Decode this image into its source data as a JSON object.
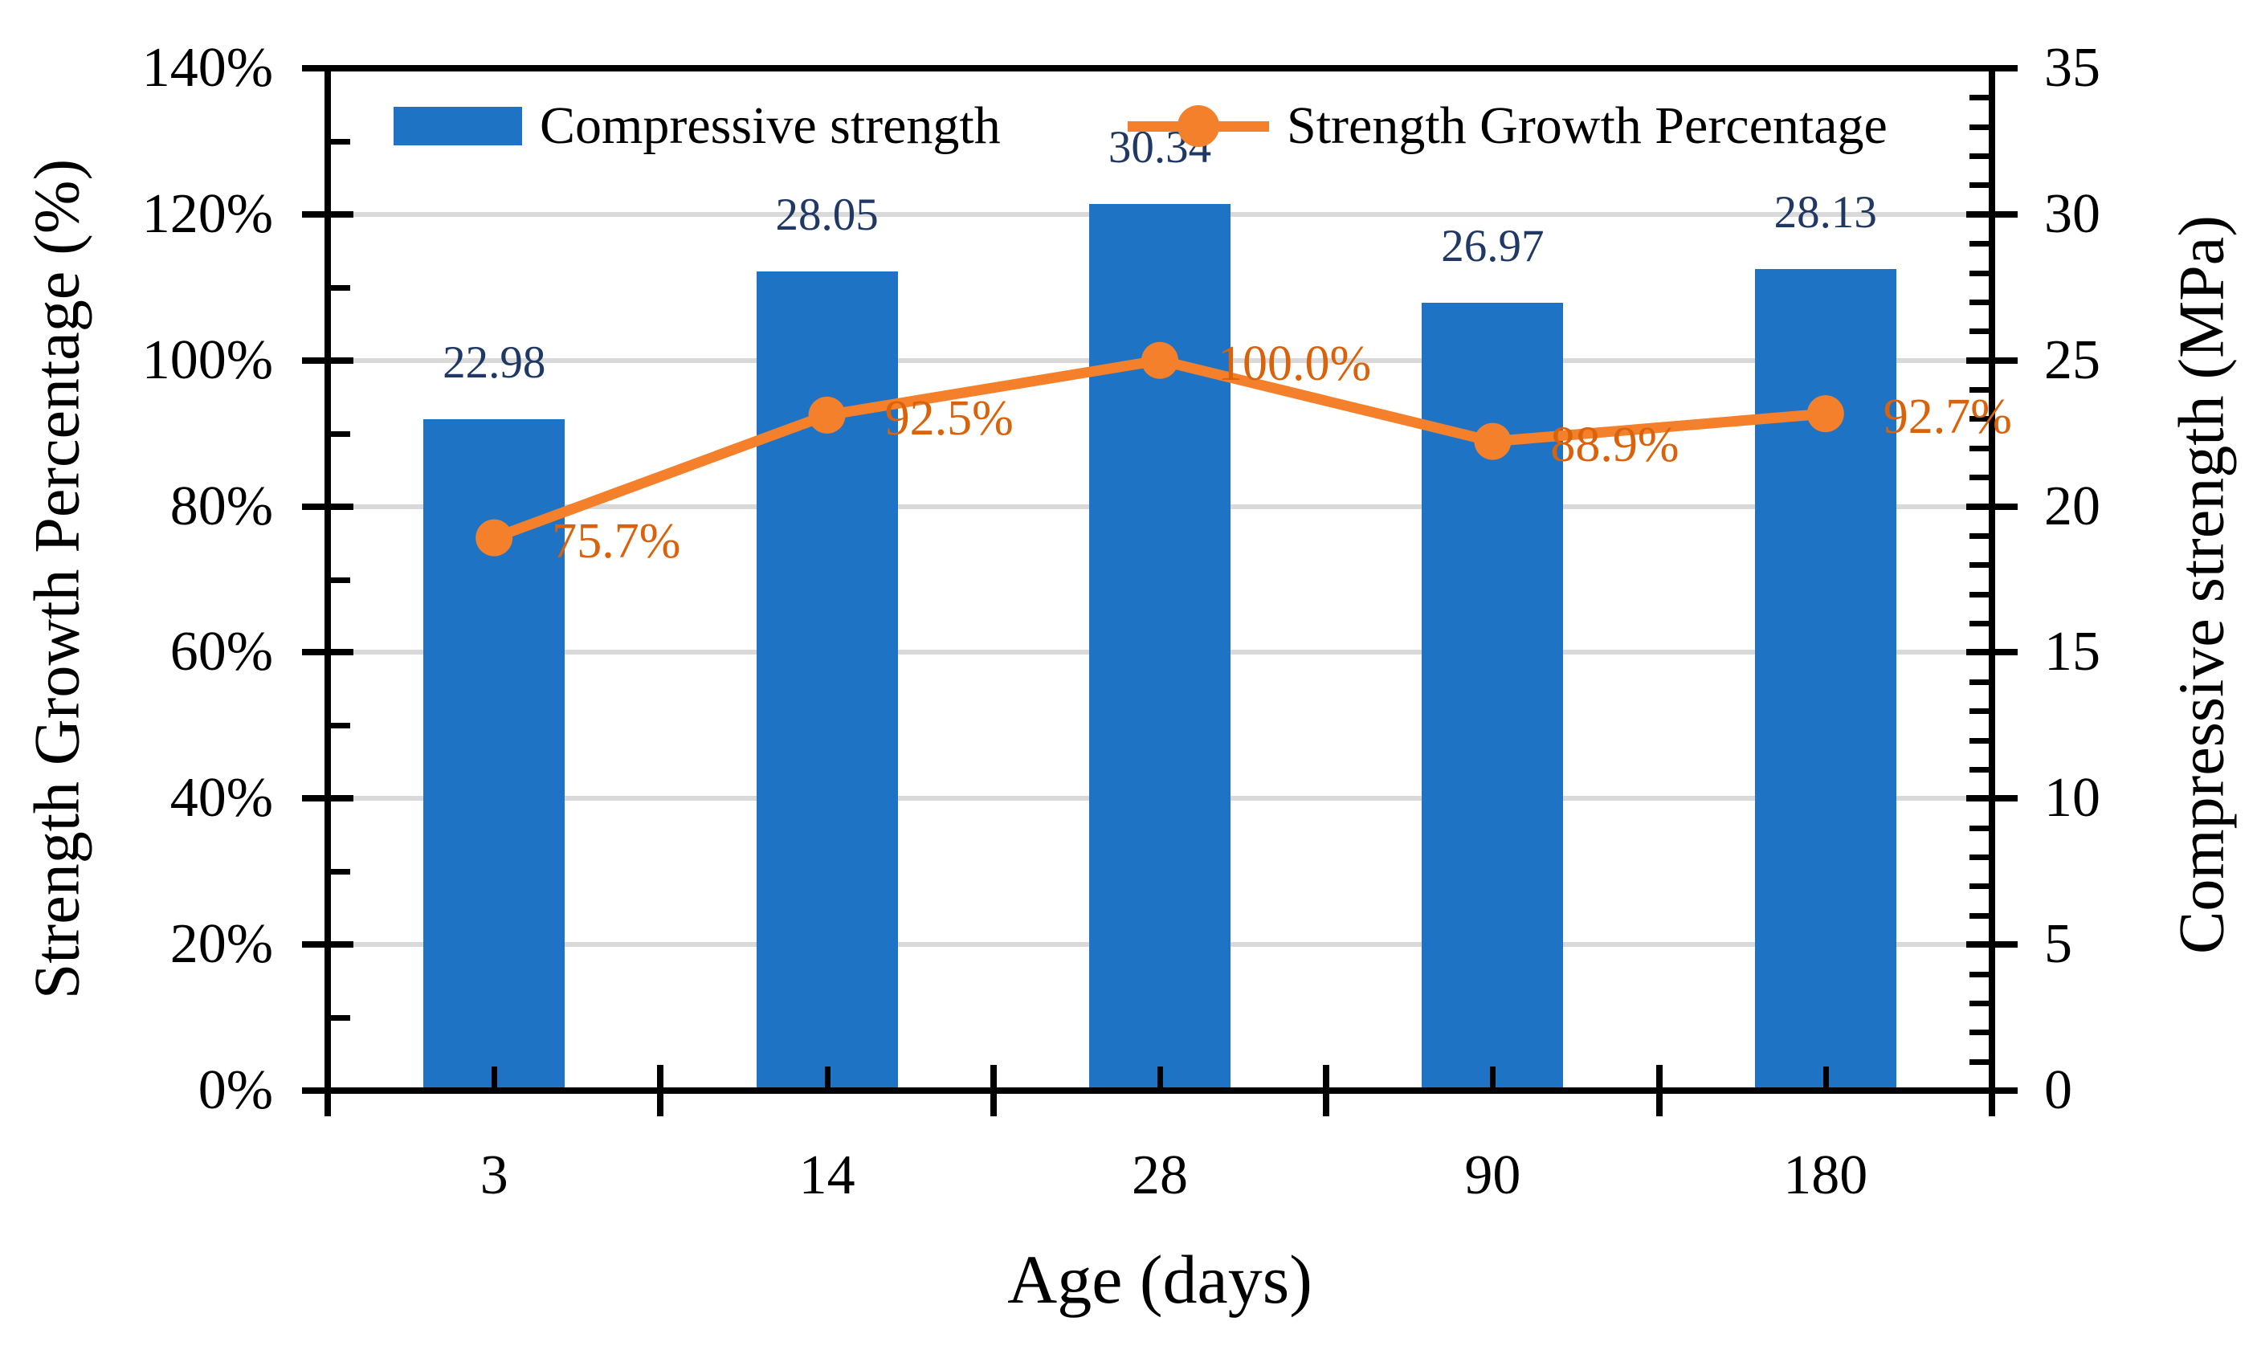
{
  "chart_data": {
    "type": "bar+line",
    "categories": [
      "3",
      "14",
      "28",
      "90",
      "180"
    ],
    "xlabel": "Age (days)",
    "left_axis": {
      "label": "Strength Growth Percentage (%)",
      "min": 0,
      "max": 140,
      "major_step": 20,
      "minor_step": 10,
      "tick_values": [
        0,
        20,
        40,
        60,
        80,
        100,
        120,
        140
      ],
      "tick_labels": [
        "0%",
        "20%",
        "40%",
        "60%",
        "80%",
        "100%",
        "120%",
        "140%"
      ]
    },
    "right_axis": {
      "label": "Compressive strength (MPa)",
      "min": 0,
      "max": 35,
      "major_step": 5,
      "minor_step": 1,
      "tick_values": [
        0,
        5,
        10,
        15,
        20,
        25,
        30,
        35
      ],
      "tick_labels": [
        "0",
        "5",
        "10",
        "15",
        "20",
        "25",
        "30",
        "35"
      ]
    },
    "series": [
      {
        "name": "Compressive strength",
        "type": "bar",
        "axis": "right",
        "color": "#1E73C4",
        "values": [
          22.98,
          28.05,
          30.34,
          26.97,
          28.13
        ],
        "data_labels": [
          "22.98",
          "28.05",
          "30.34",
          "26.97",
          "28.13"
        ],
        "label_color": "#1F3864"
      },
      {
        "name": "Strength Growth Percentage",
        "type": "line",
        "axis": "left",
        "color": "#F5802B",
        "values": [
          75.7,
          92.5,
          100.0,
          88.9,
          92.7
        ],
        "data_labels": [
          "75.7%",
          "92.5%",
          "100.0%",
          "88.9%",
          "92.7%"
        ],
        "label_color": "#D9620B"
      }
    ],
    "legend_position": "top",
    "grid": "horizontal",
    "gridline_color": "#D9D9D9",
    "axis_color": "#000000"
  },
  "legend": {
    "bar_label": "Compressive strength",
    "line_label": "Strength Growth Percentage"
  },
  "titles": {
    "left_axis": "Strength Growth Percentage (%)",
    "right_axis": "Compressive strength (MPa)",
    "x_axis": "Age (days)"
  }
}
